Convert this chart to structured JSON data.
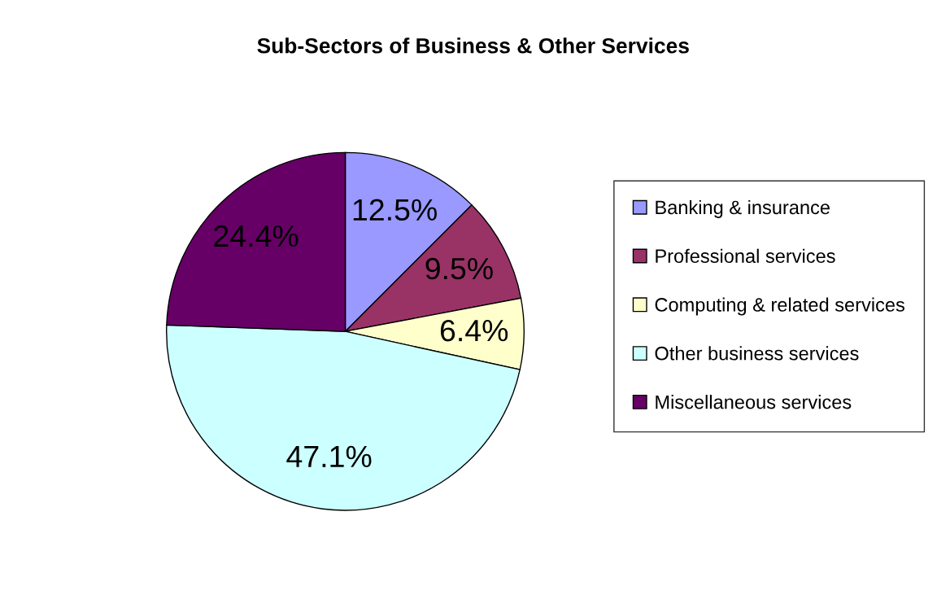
{
  "chart_data": {
    "type": "pie",
    "title": "Sub-Sectors of Business & Other Services",
    "categories": [
      "Banking & insurance",
      "Professional services",
      "Computing & related services",
      "Other business services",
      "Miscellaneous services"
    ],
    "values": [
      12.5,
      9.5,
      6.4,
      47.1,
      24.4
    ],
    "colors": [
      "#9999ff",
      "#993366",
      "#ffffcc",
      "#ccffff",
      "#660066"
    ],
    "value_labels": [
      "12.5%",
      "9.5%",
      "6.4%",
      "47.1%",
      "24.4%"
    ],
    "legend": "right"
  }
}
